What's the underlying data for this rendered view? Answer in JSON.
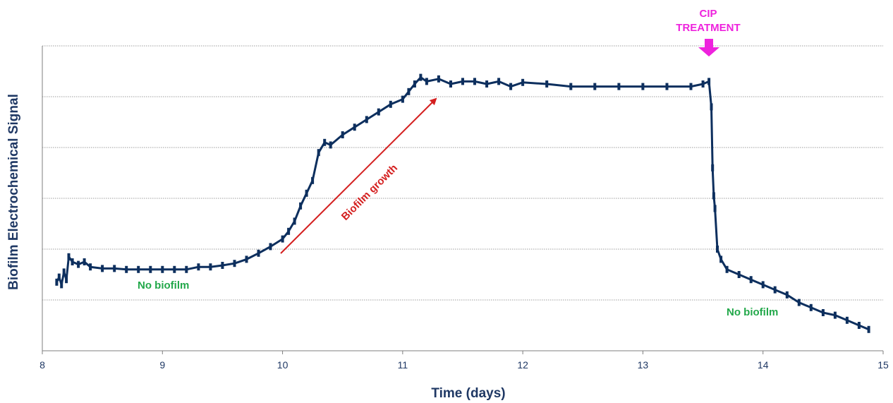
{
  "colors": {
    "series": "#0d2f5e",
    "axis_text": "#1f3864",
    "no_biofilm": "#22a84a",
    "growth": "#d41f1f",
    "cip": "#ee22dd",
    "grid": "#7f7f7f"
  },
  "chart_data": {
    "type": "line",
    "xlabel": "Time (days)",
    "ylabel": "Biofilm Electrochemical Signal",
    "xlim": [
      8,
      15
    ],
    "ylim": [
      0,
      6
    ],
    "x_ticks": [
      "8",
      "9",
      "10",
      "11",
      "12",
      "13",
      "14",
      "15"
    ],
    "y_gridlines": [
      1,
      2,
      3,
      4,
      5,
      6
    ],
    "y_tick_labels_shown": false,
    "grid": "horizontal dotted",
    "series": [
      {
        "x": [
          8.12,
          8.14,
          8.16,
          8.18,
          8.2,
          8.22,
          8.25,
          8.3,
          8.35,
          8.4,
          8.5,
          8.6,
          8.7,
          8.8,
          8.9,
          9.0,
          9.1,
          9.2,
          9.3,
          9.4,
          9.5,
          9.6,
          9.7,
          9.8,
          9.9,
          10.0,
          10.05,
          10.1,
          10.15,
          10.2,
          10.25,
          10.3,
          10.35,
          10.4,
          10.5,
          10.6,
          10.7,
          10.8,
          10.9,
          11.0,
          11.05,
          11.1,
          11.15,
          11.2,
          11.3,
          11.4,
          11.5,
          11.6,
          11.7,
          11.8,
          11.9,
          12.0,
          12.2,
          12.4,
          12.6,
          12.8,
          13.0,
          13.2,
          13.4,
          13.5,
          13.55,
          13.57,
          13.58,
          13.59,
          13.6,
          13.62,
          13.65,
          13.7,
          13.8,
          13.9,
          14.0,
          14.1,
          14.2,
          14.3,
          14.4,
          14.5,
          14.6,
          14.7,
          14.8,
          14.88
        ],
        "y": [
          1.35,
          1.45,
          1.3,
          1.55,
          1.4,
          1.85,
          1.75,
          1.7,
          1.75,
          1.65,
          1.62,
          1.62,
          1.6,
          1.6,
          1.6,
          1.6,
          1.6,
          1.6,
          1.65,
          1.65,
          1.68,
          1.72,
          1.8,
          1.92,
          2.05,
          2.2,
          2.35,
          2.55,
          2.85,
          3.1,
          3.35,
          3.9,
          4.1,
          4.05,
          4.25,
          4.4,
          4.55,
          4.7,
          4.85,
          4.95,
          5.1,
          5.25,
          5.38,
          5.3,
          5.35,
          5.25,
          5.3,
          5.3,
          5.25,
          5.3,
          5.2,
          5.28,
          5.25,
          5.2,
          5.2,
          5.2,
          5.2,
          5.2,
          5.2,
          5.25,
          5.3,
          4.8,
          3.6,
          3.05,
          2.8,
          2.0,
          1.8,
          1.6,
          1.5,
          1.4,
          1.3,
          1.2,
          1.1,
          0.95,
          0.85,
          0.75,
          0.7,
          0.6,
          0.5,
          0.42
        ]
      }
    ],
    "annotations": {
      "no_biofilm_left": "No biofilm",
      "no_biofilm_right": "No biofilm",
      "growth": "Biofilm growth",
      "cip_line1": "CIP",
      "cip_line2": "TREATMENT"
    }
  }
}
